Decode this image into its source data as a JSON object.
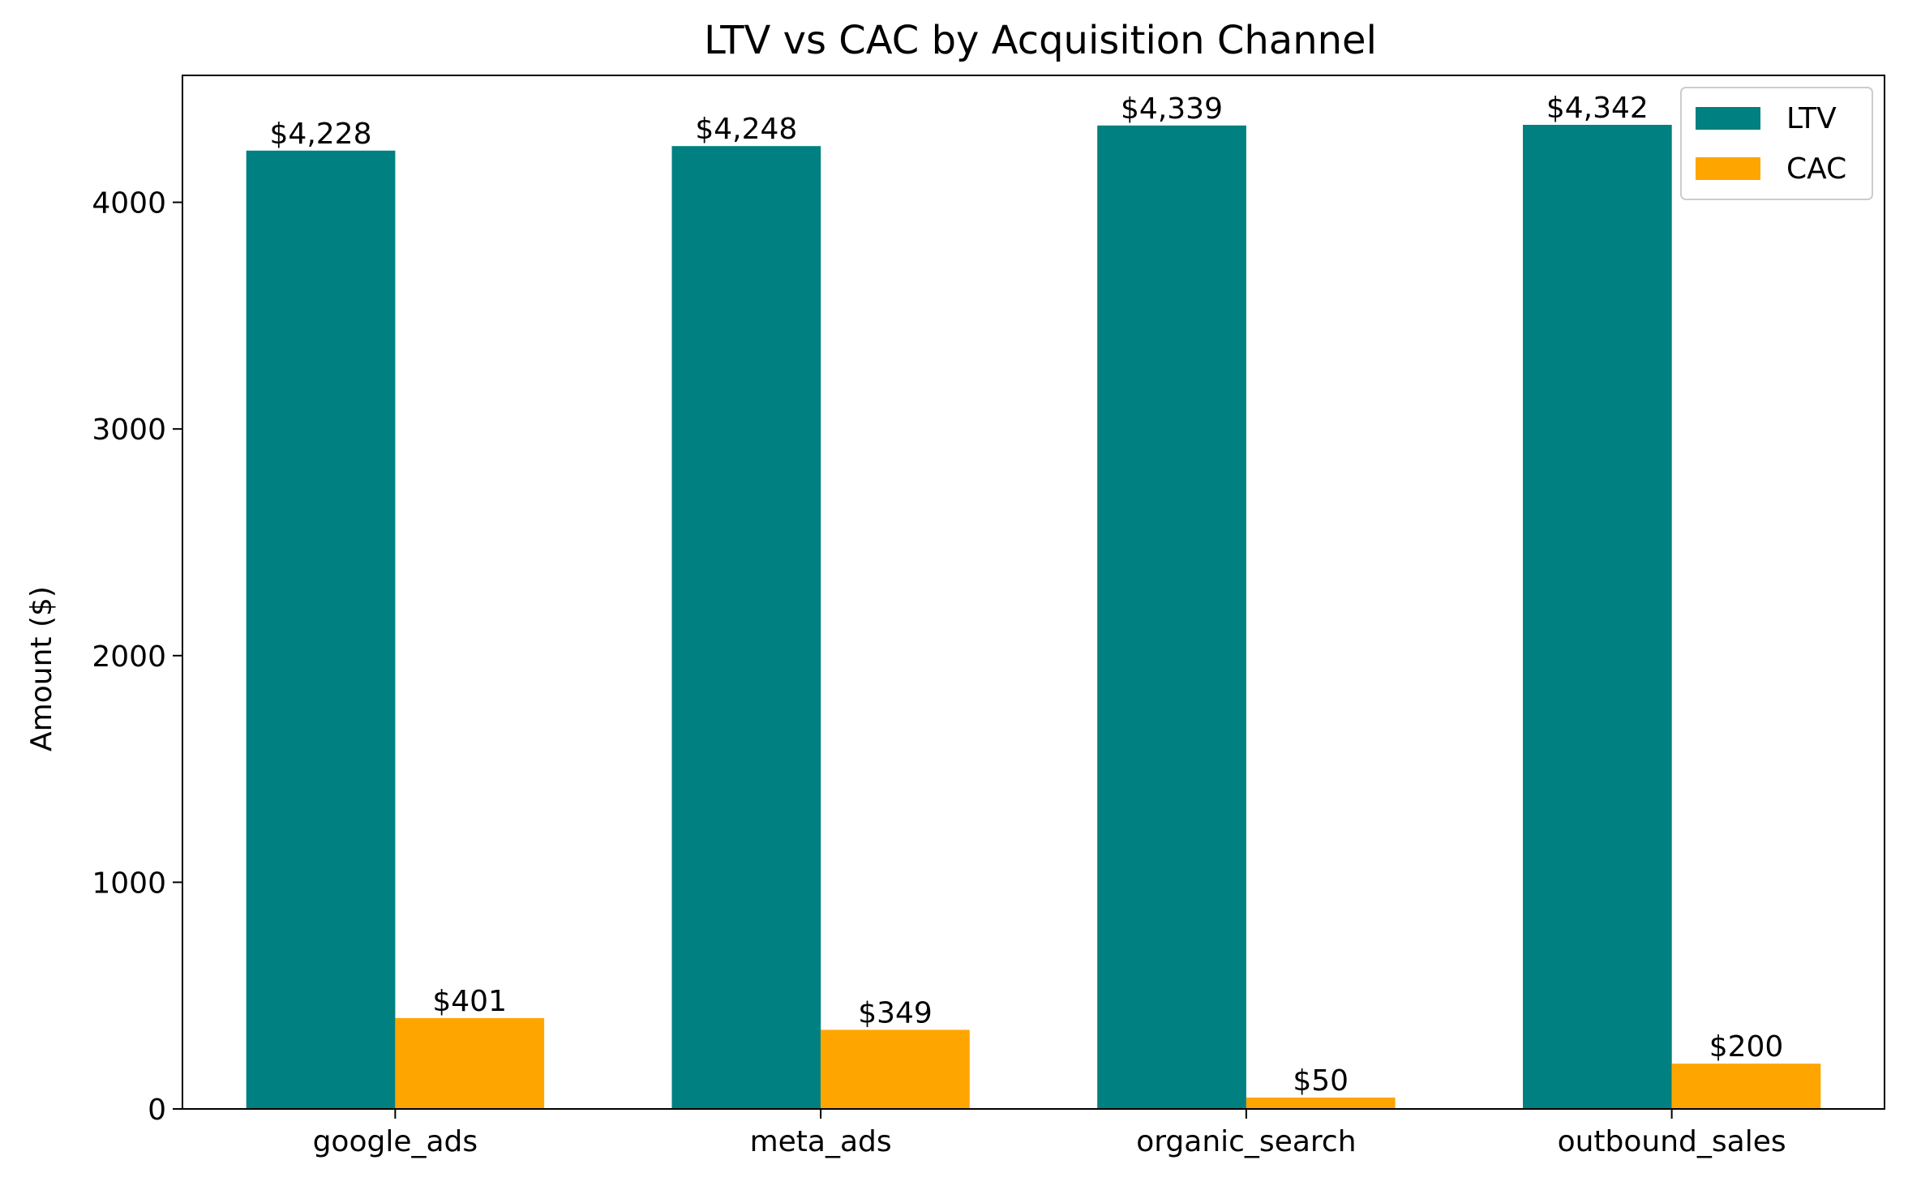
{
  "chart_data": {
    "type": "bar",
    "title": "LTV vs CAC by Acquisition Channel",
    "xlabel": "",
    "ylabel": "Amount ($)",
    "categories": [
      "google_ads",
      "meta_ads",
      "organic_search",
      "outbound_sales"
    ],
    "series": [
      {
        "name": "LTV",
        "color": "#008080",
        "values": [
          4228,
          4248,
          4339,
          4342
        ],
        "labels": [
          "$4,228",
          "$4,248",
          "$4,339",
          "$4,342"
        ]
      },
      {
        "name": "CAC",
        "color": "#FFA500",
        "values": [
          401,
          349,
          50,
          200
        ],
        "labels": [
          "$401",
          "$349",
          "$50",
          "$200"
        ]
      }
    ],
    "ylim": [
      0,
      4560
    ],
    "yticks": [
      0,
      1000,
      2000,
      3000,
      4000
    ],
    "grid": false,
    "legend": "top-right"
  }
}
